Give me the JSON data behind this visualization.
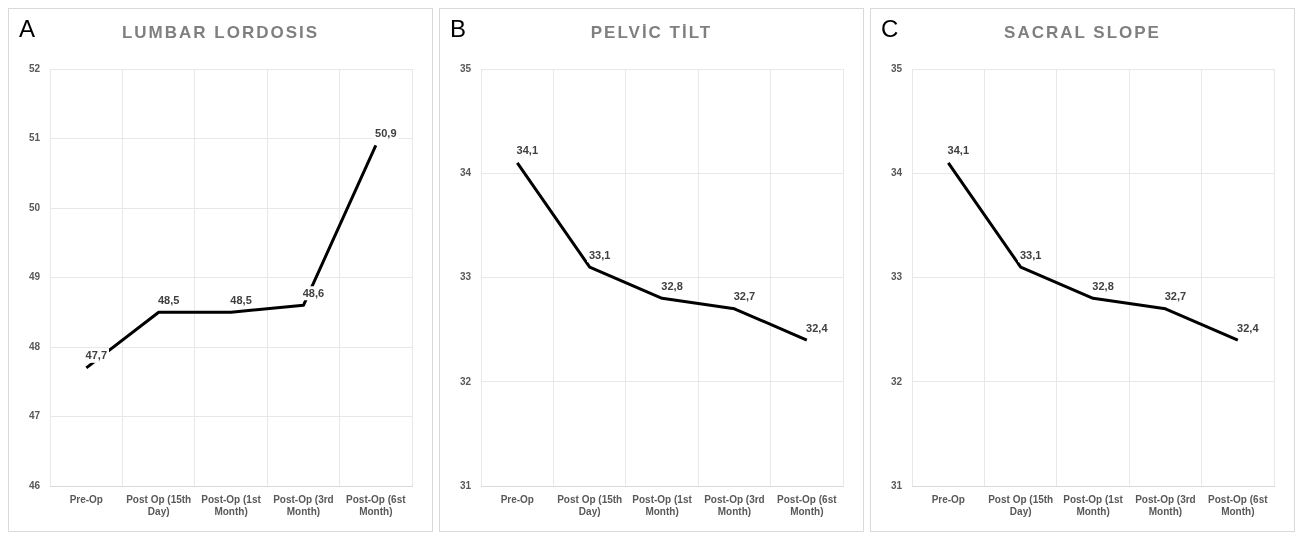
{
  "chart_data": [
    {
      "type": "line",
      "title": "LUMBAR LORDOSIS",
      "annotations": [
        "A"
      ],
      "categories": [
        "Pre-Op",
        "Post Op (15th Day)",
        "Post-Op (1st Month)",
        "Post-Op (3rd Month)",
        "Post-Op (6st Month)"
      ],
      "series": [
        {
          "color": "#000000",
          "values": [
            47.7,
            48.5,
            48.5,
            48.6,
            50.9
          ],
          "value_labels": [
            "47,7",
            "48,5",
            "48,5",
            "48,6",
            "50,9"
          ]
        }
      ],
      "ylim": [
        46,
        52
      ],
      "yticks": [
        46,
        47,
        48,
        49,
        50,
        51,
        52
      ],
      "grid": true,
      "marker": "none",
      "line_style": "solid"
    },
    {
      "type": "line",
      "title": "PELVİC TİLT",
      "annotations": [
        "B"
      ],
      "categories": [
        "Pre-Op",
        "Post Op (15th Day)",
        "Post-Op (1st Month)",
        "Post-Op (3rd Month)",
        "Post-Op (6st Month)"
      ],
      "series": [
        {
          "color": "#000000",
          "values": [
            34.1,
            33.1,
            32.8,
            32.7,
            32.4
          ],
          "value_labels": [
            "34,1",
            "33,1",
            "32,8",
            "32,7",
            "32,4"
          ]
        }
      ],
      "ylim": [
        31,
        35
      ],
      "yticks": [
        31,
        32,
        33,
        34,
        35
      ],
      "grid": true,
      "marker": "none",
      "line_style": "solid"
    },
    {
      "type": "line",
      "title": "SACRAL SLOPE",
      "annotations": [
        "C"
      ],
      "categories": [
        "Pre-Op",
        "Post Op (15th Day)",
        "Post-Op (1st Month)",
        "Post-Op (3rd Month)",
        "Post-Op (6st Month)"
      ],
      "series": [
        {
          "color": "#000000",
          "values": [
            34.1,
            33.1,
            32.8,
            32.7,
            32.4
          ],
          "value_labels": [
            "34,1",
            "33,1",
            "32,8",
            "32,7",
            "32,4"
          ]
        }
      ],
      "ylim": [
        31,
        35
      ],
      "yticks": [
        31,
        32,
        33,
        34,
        35
      ],
      "grid": true,
      "marker": "none",
      "line_style": "solid"
    }
  ]
}
